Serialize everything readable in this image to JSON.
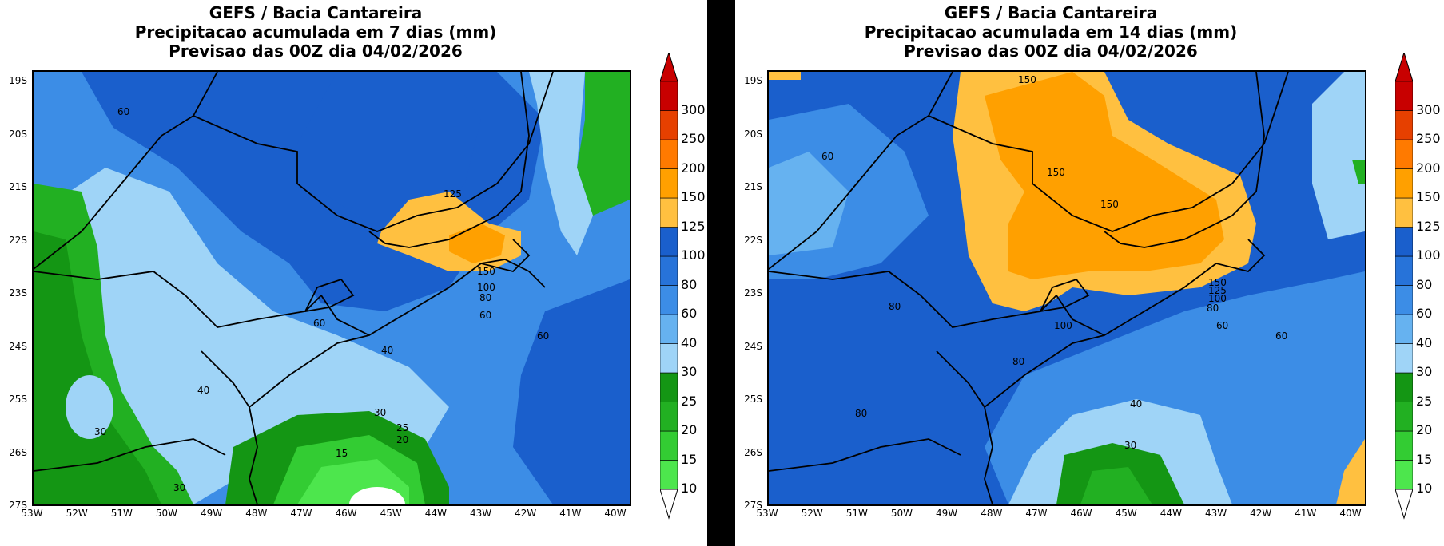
{
  "panels": [
    {
      "title": [
        "GEFS / Bacia Cantareira",
        "Precipitacao acumulada em 7 dias (mm)",
        "Previsao das 00Z dia 04/02/2026"
      ],
      "contour_labels": [
        "60",
        "125",
        "150",
        "100",
        "80",
        "60",
        "60",
        "40",
        "60",
        "40",
        "30",
        "25",
        "20",
        "15",
        "30",
        "30"
      ]
    },
    {
      "title": [
        "GEFS / Bacia Cantareira",
        "Precipitacao acumulada em 14 dias (mm)",
        "Previsao das 00Z dia 04/02/2026"
      ],
      "contour_labels": [
        "150",
        "60",
        "150",
        "150",
        "150",
        "125",
        "100",
        "80",
        "80",
        "100",
        "60",
        "60",
        "80",
        "80",
        "40",
        "30"
      ]
    }
  ],
  "lat_labels": [
    "19S",
    "20S",
    "21S",
    "22S",
    "23S",
    "24S",
    "25S",
    "26S",
    "27S"
  ],
  "lon_labels": [
    "53W",
    "52W",
    "51W",
    "50W",
    "49W",
    "48W",
    "47W",
    "46W",
    "45W",
    "44W",
    "43W",
    "42W",
    "41W",
    "40W"
  ],
  "colorbar": {
    "levels": [
      "10",
      "15",
      "20",
      "25",
      "30",
      "40",
      "60",
      "80",
      "100",
      "125",
      "150",
      "200",
      "250",
      "300"
    ],
    "colors": [
      "#4de64d",
      "#33cc33",
      "#22b022",
      "#149614",
      "#9fd4f7",
      "#66b2f0",
      "#3c8de6",
      "#2773d9",
      "#1a5fcc",
      "#ffc040",
      "#ffa000",
      "#ff7a00",
      "#e64000",
      "#c80000"
    ]
  }
}
